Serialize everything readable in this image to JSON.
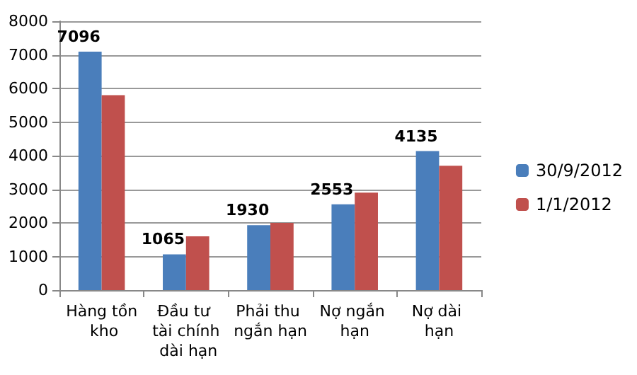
{
  "chart_data": {
    "type": "bar",
    "categories": [
      "Hàng tồn kho",
      "Đầu tư tài chính dài hạn",
      "Phải thu ngắn hạn",
      "Nợ ngắn hạn",
      "Nợ dài hạn"
    ],
    "series": [
      {
        "name": "30/9/2012",
        "color": "#4a7ebb",
        "values": [
          7096,
          1065,
          1930,
          2553,
          4135
        ],
        "value_labels": [
          "7096",
          "1065",
          "1930",
          "2553",
          "4135"
        ]
      },
      {
        "name": "1/1/2012",
        "color": "#c0504d",
        "values": [
          5800,
          1600,
          2000,
          2900,
          3700
        ]
      }
    ],
    "ylim": [
      0,
      8000
    ],
    "yticks": [
      0,
      1000,
      2000,
      3000,
      4000,
      5000,
      6000,
      7000,
      8000
    ],
    "grid": "y",
    "legend": "right"
  }
}
